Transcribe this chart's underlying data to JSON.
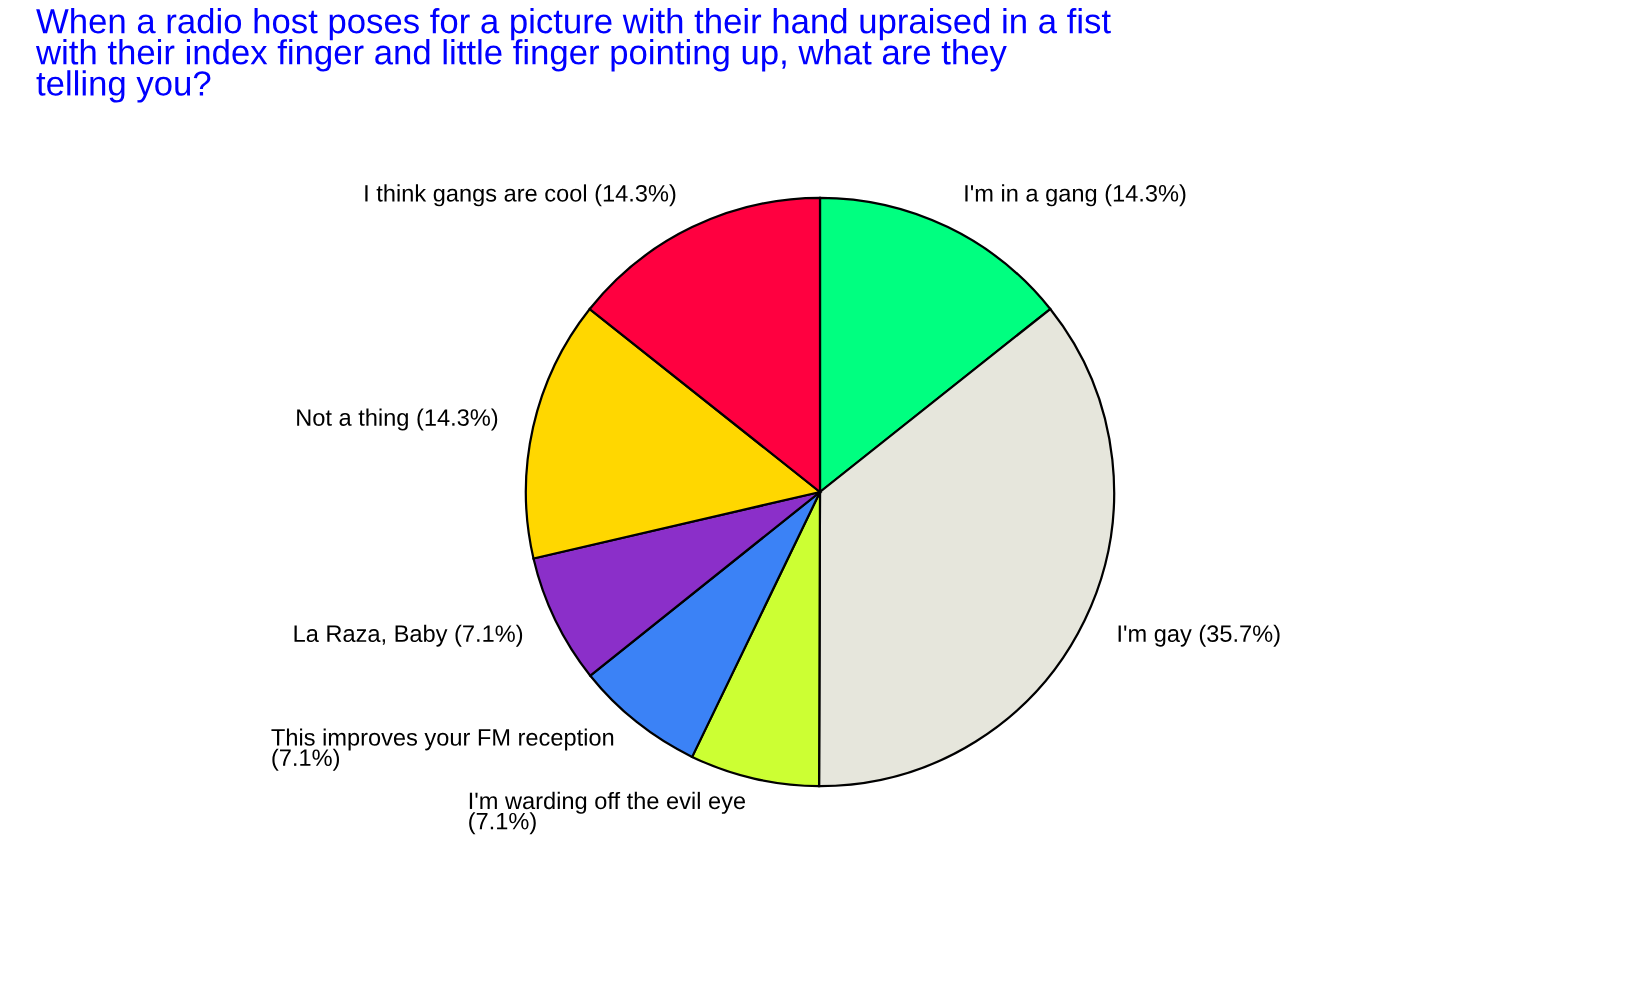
{
  "chart_data": {
    "type": "pie",
    "title": "When a radio host poses for a picture with their hand upraised in a fist\nwith their index finger and little finger pointing up, what are they\ntelling you?",
    "categories": [
      "I'm in a gang (14.3%)",
      "I'm gay (35.7%)",
      "I'm warding off the evil eye\n(7.1%)",
      "This improves your FM reception\n(7.1%)",
      "La Raza, Baby (7.1%)",
      "Not a thing (14.3%)",
      "I think gangs are cool (14.3%)"
    ],
    "values": [
      14.3,
      35.7,
      7.1,
      7.1,
      7.1,
      14.3,
      14.3
    ],
    "colors": [
      "#00ff80",
      "#e6e6dc",
      "#ccff33",
      "#3b82f6",
      "#8b2fc9",
      "#ffd700",
      "#ff0040"
    ],
    "legend": false
  }
}
